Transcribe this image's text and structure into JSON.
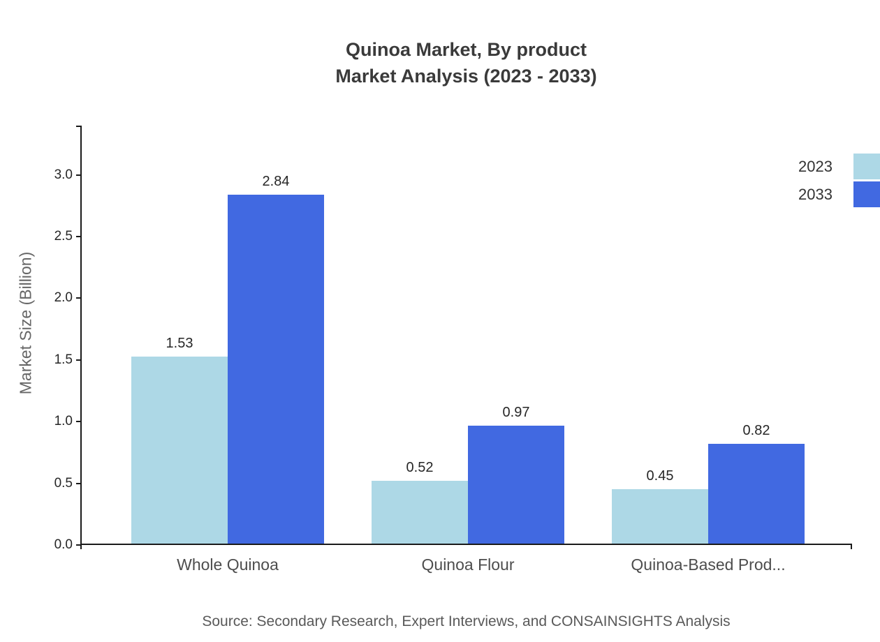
{
  "chart_data": {
    "type": "bar",
    "title": "Quinoa Market, By product",
    "subtitle": "Market Analysis (2023 - 2033)",
    "ylabel": "Market Size (Billion)",
    "categories": [
      "Whole Quinoa",
      "Quinoa Flour",
      "Quinoa-Based Prod..."
    ],
    "series": [
      {
        "name": "2023",
        "color": "#ADD8E6",
        "values": [
          1.53,
          0.52,
          0.45
        ]
      },
      {
        "name": "2033",
        "color": "#4169E1",
        "values": [
          2.84,
          0.97,
          0.82
        ]
      }
    ],
    "ylim": [
      0,
      3.4
    ],
    "yticks": [
      0.0,
      0.5,
      1.0,
      1.5,
      2.0,
      2.5,
      3.0
    ],
    "value_label_decimals": 2,
    "grid": false,
    "legend_position": "top-right",
    "axis_color": "#1a1a1a",
    "source": "Source: Secondary Research, Expert Interviews, and CONSAINSIGHTS Analysis"
  }
}
